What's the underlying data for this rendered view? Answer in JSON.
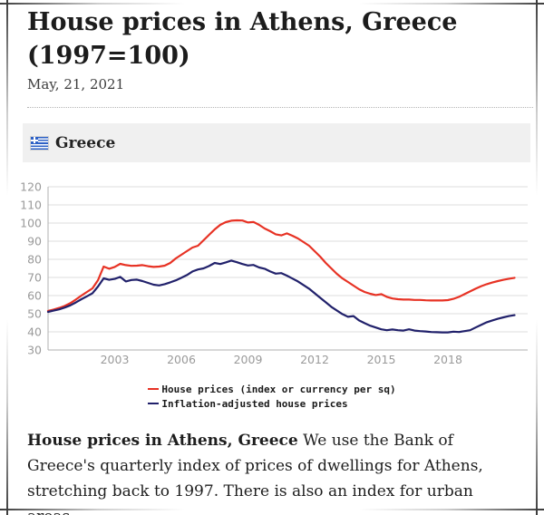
{
  "header": {
    "title": "House prices in Athens, Greece (1997=100)",
    "date": "May, 21, 2021"
  },
  "banner": {
    "country": "Greece",
    "flag_icon": "greece-flag-icon"
  },
  "colors": {
    "house_prices_red": "#e73224",
    "inflation_adjusted_navy": "#21216b",
    "flag_blue": "#2d61c6",
    "banner_background": "#f0f0f0",
    "gridline": "#dcdcdc",
    "axis": "#b0b0b0",
    "tick_text": "#9a9a9a"
  },
  "chart_data": {
    "type": "line",
    "title": "",
    "xlabel": "",
    "ylabel": "",
    "ylim": [
      30,
      120
    ],
    "yticks": [
      30,
      40,
      50,
      60,
      70,
      80,
      90,
      100,
      110,
      120
    ],
    "xticks": [
      2003,
      2006,
      2009,
      2012,
      2015,
      2018
    ],
    "grid": "horizontal",
    "legend_position": "bottom",
    "x_start": 2000,
    "x_step": 0.25,
    "x_unit": "year (quarterly)",
    "series": [
      {
        "name": "House prices (index or currency per sq)",
        "color": "#e73224",
        "values": [
          51.5,
          52.3,
          53.2,
          54.3,
          55.8,
          57.8,
          60,
          62,
          64,
          68.5,
          76,
          74.8,
          75.8,
          77.5,
          76.8,
          76.4,
          76.5,
          76.8,
          76.2,
          75.8,
          76,
          76.5,
          78,
          80.5,
          82.5,
          84.5,
          86.5,
          87.5,
          90.5,
          93.5,
          96.5,
          99,
          100.5,
          101.3,
          101.5,
          101.4,
          100.3,
          100.6,
          99,
          97,
          95.5,
          93.8,
          93.2,
          94.3,
          93,
          91.5,
          89.5,
          87.5,
          84.5,
          81.5,
          78,
          75,
          72,
          69.5,
          67.5,
          65.5,
          63.5,
          62,
          61,
          60.3,
          60.8,
          59.3,
          58.4,
          58,
          57.8,
          57.8,
          57.6,
          57.6,
          57.4,
          57.3,
          57.3,
          57.3,
          57.5,
          58.2,
          59.3,
          60.8,
          62.3,
          63.8,
          65.2,
          66.3,
          67.2,
          68,
          68.7,
          69.3,
          69.8
        ]
      },
      {
        "name": "Inflation-adjusted house prices",
        "color": "#21216b",
        "values": [
          51,
          51.7,
          52.4,
          53.4,
          54.6,
          56.2,
          58,
          59.6,
          61.3,
          65,
          69.5,
          68.7,
          69.2,
          70.3,
          67.8,
          68.6,
          68.8,
          68,
          67,
          66,
          65.6,
          66.3,
          67.3,
          68.4,
          69.8,
          71.3,
          73.3,
          74.4,
          75,
          76.3,
          78,
          77.4,
          78.3,
          79.3,
          78.4,
          77.4,
          76.6,
          76.9,
          75.5,
          74.8,
          73.3,
          72.1,
          72.4,
          71,
          69.4,
          67.8,
          65.8,
          63.8,
          61.3,
          58.8,
          56.3,
          53.8,
          51.8,
          49.8,
          48.3,
          48.7,
          46.3,
          44.8,
          43.4,
          42.4,
          41.4,
          40.9,
          41.3,
          40.9,
          40.7,
          41.4,
          40.7,
          40.4,
          40.2,
          39.9,
          39.8,
          39.7,
          39.7,
          40.1,
          39.9,
          40.4,
          40.9,
          42.4,
          43.9,
          45.3,
          46.3,
          47.2,
          48,
          48.7,
          49.2
        ]
      }
    ]
  },
  "caption": {
    "lead": "House prices in Athens, Greece",
    "body": "We use the Bank of Greece's quarterly index of prices of dwellings for Athens, stretching back to 1997. There is also an index for urban areas."
  }
}
